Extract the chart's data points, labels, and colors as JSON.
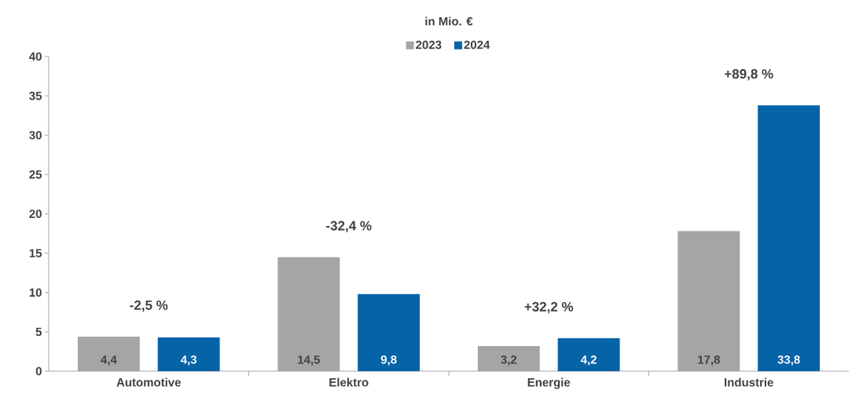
{
  "chart_data": {
    "type": "bar",
    "title": "in Mio. €",
    "categories": [
      "Automotive",
      "Elektro",
      "Energie",
      "Industrie"
    ],
    "series": [
      {
        "name": "2023",
        "color": "#a5a5a5",
        "values": [
          4.4,
          14.5,
          3.2,
          17.8
        ],
        "value_labels": [
          "4,4",
          "14,5",
          "3,2",
          "17,8"
        ]
      },
      {
        "name": "2024",
        "color": "#0563a8",
        "values": [
          4.3,
          9.8,
          4.2,
          33.8
        ],
        "value_labels": [
          "4,3",
          "9,8",
          "4,2",
          "33,8"
        ]
      }
    ],
    "annotations": [
      "-2,5 %",
      "-32,4 %",
      "+32,2 %",
      "+89,8 %"
    ],
    "ylim": [
      0,
      40
    ],
    "yticks": [
      0,
      5,
      10,
      15,
      20,
      25,
      30,
      35,
      40
    ],
    "grid": false,
    "legend": "top"
  }
}
